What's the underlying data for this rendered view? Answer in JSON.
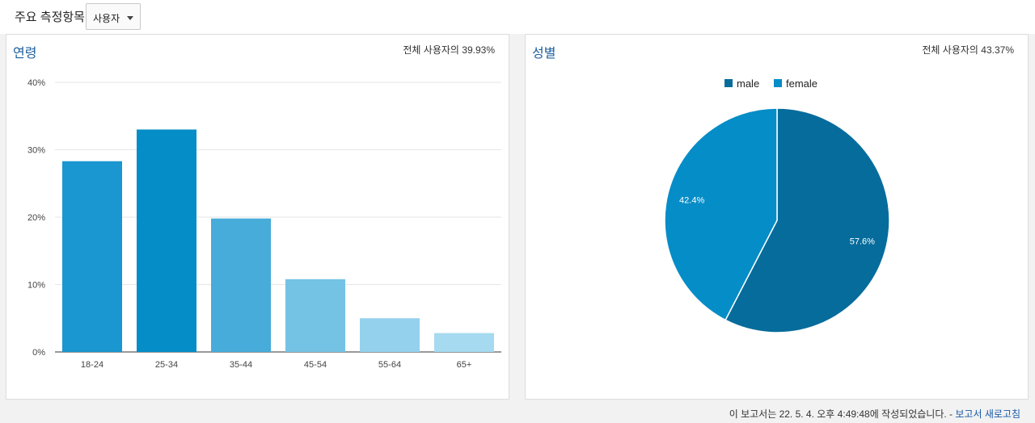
{
  "header": {
    "metric_label": "주요 측정항목",
    "metric_value": "사용자"
  },
  "age_panel": {
    "title": "연령",
    "subtitle": "전체 사용자의 39.93%"
  },
  "gender_panel": {
    "title": "성별",
    "subtitle": "전체 사용자의 43.37%"
  },
  "chart_data": [
    {
      "type": "bar",
      "title": "연령",
      "categories": [
        "18-24",
        "25-34",
        "35-44",
        "45-54",
        "55-64",
        "65+"
      ],
      "values": [
        28.3,
        33.0,
        19.8,
        10.8,
        5.0,
        2.8
      ],
      "colors": [
        "#1a96d0",
        "#058dc7",
        "#47acd9",
        "#74c3e4",
        "#94d1ed",
        "#a6daf0"
      ],
      "ylim": [
        0,
        40
      ],
      "yticks": [
        "0%",
        "10%",
        "20%",
        "30%",
        "40%"
      ],
      "ytick_values": [
        0,
        10,
        20,
        30,
        40
      ],
      "grid": true
    },
    {
      "type": "pie",
      "title": "성별",
      "labels": [
        "male",
        "female"
      ],
      "values": [
        57.6,
        42.4
      ],
      "value_labels": [
        "57.6%",
        "42.4%"
      ],
      "colors": [
        "#066c9c",
        "#058dc7"
      ],
      "legend": "top"
    }
  ],
  "footer": {
    "text": "이 보고서는 22. 5. 4. 오후 4:49:48에 작성되었습니다. - ",
    "refresh_label": "보고서 새로고침"
  }
}
